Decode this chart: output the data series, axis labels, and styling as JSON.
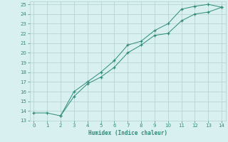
{
  "xlabel": "Humidex (Indice chaleur)",
  "line1_x": [
    0,
    1,
    2,
    3,
    4,
    5,
    6,
    7,
    8,
    9,
    10,
    11,
    12,
    13,
    14
  ],
  "line1_y": [
    13.8,
    13.8,
    13.5,
    16.0,
    17.0,
    18.0,
    19.2,
    20.8,
    21.2,
    22.3,
    23.0,
    24.5,
    24.8,
    25.0,
    24.7
  ],
  "line2_x": [
    2,
    3,
    4,
    5,
    6,
    7,
    8,
    9,
    10,
    11,
    12,
    13,
    14
  ],
  "line2_y": [
    13.5,
    15.5,
    16.8,
    17.5,
    18.5,
    20.0,
    20.8,
    21.8,
    22.0,
    23.3,
    24.0,
    24.2,
    24.7
  ],
  "line_color": "#2d8b78",
  "bg_color": "#d8f0f0",
  "grid_color": "#b0cece",
  "xlim": [
    -0.3,
    14.3
  ],
  "ylim": [
    13.0,
    25.3
  ],
  "xticks": [
    0,
    1,
    2,
    3,
    4,
    5,
    6,
    7,
    8,
    9,
    10,
    11,
    12,
    13,
    14
  ],
  "yticks": [
    13,
    14,
    15,
    16,
    17,
    18,
    19,
    20,
    21,
    22,
    23,
    24,
    25
  ],
  "marker": "+"
}
